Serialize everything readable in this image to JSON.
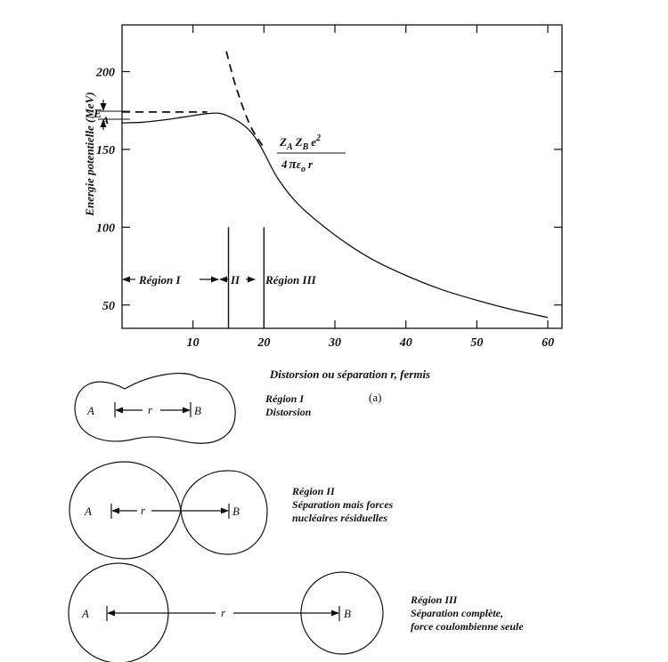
{
  "plot": {
    "ylabel": "Energie potentielle (MeV)",
    "xlabel": "Distorsion ou séparation r, fermis",
    "caption": "(a)",
    "ea_label": "E",
    "ea_sub": "A",
    "coulomb": {
      "num_z": "Z",
      "num_a": "A",
      "num_z2": "Z",
      "num_b": "B",
      "num_e": "e",
      "num_pow": "2",
      "den_pre": "4",
      "den_pi": "π",
      "den_e": "ε",
      "den_sub": "o",
      "den_r": "r"
    },
    "regions": {
      "r1": "Région I",
      "r2": "II",
      "r3": "Région III"
    }
  },
  "chart_data": {
    "type": "line",
    "xlabel": "Distorsion ou séparation r, fermis",
    "ylabel": "Energie potentielle (MeV)",
    "xlim": [
      0,
      62
    ],
    "ylim": [
      35,
      230
    ],
    "xticks": [
      10,
      20,
      30,
      40,
      50,
      60
    ],
    "yticks": [
      50,
      100,
      150,
      200
    ],
    "grid": false,
    "series": [
      {
        "style": "solid",
        "x": [
          0,
          3,
          6,
          9,
          12,
          14,
          16,
          17,
          18,
          19,
          20,
          22,
          25,
          30,
          35,
          40,
          45,
          50,
          55,
          60
        ],
        "y": [
          167,
          167.5,
          169,
          171,
          173,
          173,
          169,
          166,
          162,
          156,
          148,
          131,
          114,
          95,
          80,
          69,
          60,
          53,
          47,
          42
        ]
      },
      {
        "style": "dashed",
        "x": [
          14.7,
          16,
          18,
          20
        ],
        "y": [
          213,
          191,
          166,
          151
        ]
      },
      {
        "style": "dashed",
        "x": [
          0,
          6,
          12
        ],
        "y": [
          174,
          174,
          174
        ]
      }
    ],
    "region_boundaries": [
      15,
      20
    ],
    "EA_bracket": [
      167,
      174
    ]
  },
  "diagrams": [
    {
      "a": "A",
      "b": "B",
      "r": "r",
      "lines": [
        "Région I",
        "Distorsion"
      ]
    },
    {
      "a": "A",
      "b": "B",
      "r": "r",
      "lines": [
        "Région II",
        "Séparation mais forces",
        "nucléaires résiduelles"
      ]
    },
    {
      "a": "A",
      "b": "B",
      "r": "r",
      "lines": [
        "Région III",
        "Séparation complète,",
        "force coulombienne seule"
      ]
    }
  ]
}
